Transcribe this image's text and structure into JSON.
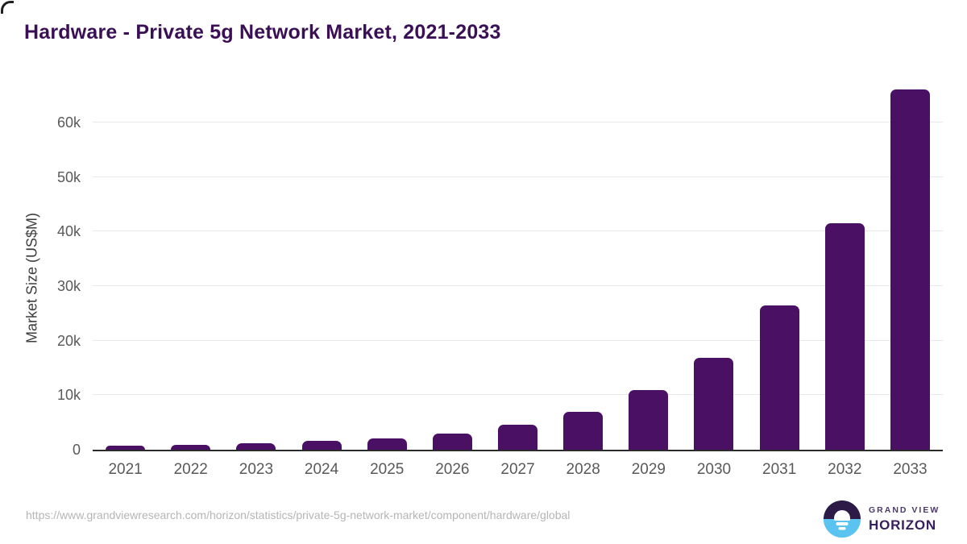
{
  "title": "Hardware - Private 5g Network Market, 2021-2033",
  "chart_data": {
    "type": "bar",
    "title": "Hardware - Private 5g Network Market, 2021-2033",
    "categories": [
      "2021",
      "2022",
      "2023",
      "2024",
      "2025",
      "2026",
      "2027",
      "2028",
      "2029",
      "2030",
      "2031",
      "2032",
      "2033"
    ],
    "values": [
      700,
      950,
      1250,
      1600,
      2100,
      3000,
      4600,
      7000,
      10900,
      16800,
      26400,
      41500,
      66000
    ],
    "xlabel": "",
    "ylabel": "Market Size (US$M)",
    "ylim": [
      0,
      68000
    ],
    "yticks": [
      0,
      10000,
      20000,
      30000,
      40000,
      50000,
      60000
    ],
    "ytick_labels": [
      "0",
      "10k",
      "20k",
      "30k",
      "40k",
      "50k",
      "60k"
    ],
    "grid": "horizontal-light",
    "legend": "none",
    "bar_color": "#491063"
  },
  "colors": {
    "title": "#3a0f55",
    "bar": "#491063",
    "gridline": "#e8e8e8",
    "axis_line": "#2b2b2b",
    "tick_label": "#595959",
    "footer_url": "#b5b5b5",
    "logo_purple": "#2e1a47",
    "logo_blue": "#5ac3ef"
  },
  "footer": {
    "url": "https://www.grandviewresearch.com/horizon/statistics/private-5g-network-market/component/hardware/global",
    "logo_line1": "GRAND VIEW",
    "logo_line2": "HORIZON"
  }
}
